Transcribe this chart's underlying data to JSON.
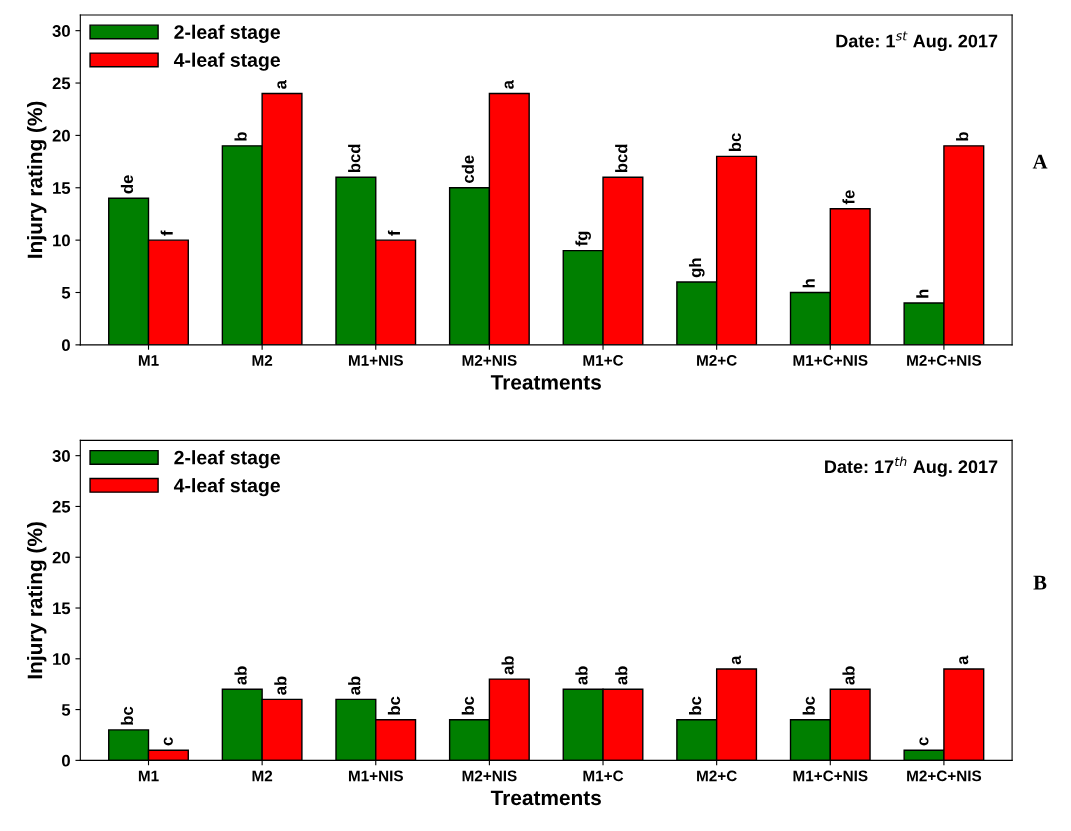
{
  "chart_data": [
    {
      "type": "bar",
      "xlabel": "Treatments",
      "ylabel": "Injury rating (%)",
      "categories": [
        "M1",
        "M2",
        "M1+NIS",
        "M2+NIS",
        "M1+C",
        "M2+C",
        "M1+C+NIS",
        "M2+C+NIS"
      ],
      "series": [
        {
          "name": "2-leaf stage",
          "color": "#007f00",
          "values": [
            14,
            19,
            16,
            15,
            9,
            6,
            5,
            4
          ],
          "value_labels": [
            "de",
            "b",
            "bcd",
            "cde",
            "fg",
            "gh",
            "h",
            "h"
          ]
        },
        {
          "name": "4-leaf stage",
          "color": "#ff0000",
          "values": [
            10,
            24,
            10,
            24,
            16,
            18,
            13,
            19
          ],
          "value_labels": [
            "f",
            "a",
            "f",
            "a",
            "bcd",
            "bc",
            "fe",
            "b"
          ]
        }
      ],
      "ylim": [
        0,
        31.5
      ],
      "yticks": [
        0,
        5,
        10,
        15,
        20,
        25,
        30
      ],
      "legend": "top left",
      "grid": false,
      "annotations": [
        "Date: 1$^{st}$ Aug. 2017",
        "A"
      ]
    },
    {
      "type": "bar",
      "xlabel": "Treatments",
      "ylabel": "Injury rating (%)",
      "categories": [
        "M1",
        "M2",
        "M1+NIS",
        "M2+NIS",
        "M1+C",
        "M2+C",
        "M1+C+NIS",
        "M2+C+NIS"
      ],
      "series": [
        {
          "name": "2-leaf stage",
          "color": "#007f00",
          "values": [
            3,
            7,
            6,
            4,
            7,
            4,
            4,
            1
          ],
          "value_labels": [
            "bc",
            "ab",
            "ab",
            "bc",
            "ab",
            "bc",
            "bc",
            "c"
          ]
        },
        {
          "name": "4-leaf stage",
          "color": "#ff0000",
          "values": [
            1,
            6,
            4,
            8,
            7,
            9,
            7,
            9
          ],
          "value_labels": [
            "c",
            "ab",
            "bc",
            "ab",
            "ab",
            "a",
            "ab",
            "a"
          ]
        }
      ],
      "ylim": [
        0,
        31.5
      ],
      "yticks": [
        0,
        5,
        10,
        15,
        20,
        25,
        30
      ],
      "legend": "top left",
      "grid": false,
      "annotations": [
        "Date: 17$^{th}$ Aug. 2017",
        "B"
      ]
    }
  ]
}
